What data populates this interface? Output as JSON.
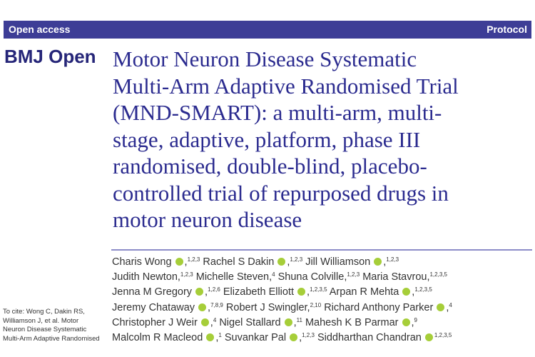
{
  "header": {
    "left": "Open access",
    "right": "Protocol"
  },
  "brand": "BMJ Open",
  "title_lines": [
    "Motor Neuron Disease Systematic",
    "Multi-Arm Adaptive Randomised Trial",
    "(MND-SMART): a multi-arm, multi-",
    "stage, adaptive, platform, phase III",
    "randomised, double-blind, placebo-",
    "controlled trial of repurposed drugs in",
    "motor neuron disease"
  ],
  "authors": [
    [
      {
        "n": "Charis Wong",
        "o": true,
        "s": "1,2,3"
      },
      {
        "n": "Rachel S Dakin",
        "o": true,
        "s": "1,2,3"
      },
      {
        "n": "Jill Williamson",
        "o": true,
        "s": "1,2,3"
      }
    ],
    [
      {
        "n": "Judith Newton,",
        "o": false,
        "s": "1,2,3"
      },
      {
        "n": "Michelle Steven,",
        "o": false,
        "s": "4"
      },
      {
        "n": "Shuna Colville,",
        "o": false,
        "s": "1,2,3"
      },
      {
        "n": "Maria Stavrou,",
        "o": false,
        "s": "1,2,3,5"
      }
    ],
    [
      {
        "n": "Jenna M Gregory",
        "o": true,
        "s": "1,2,6"
      },
      {
        "n": "Elizabeth Elliott",
        "o": true,
        "s": "1,2,3,5"
      },
      {
        "n": "Arpan R Mehta",
        "o": true,
        "s": "1,2,3,5"
      }
    ],
    [
      {
        "n": "Jeremy Chataway",
        "o": true,
        "s": "7,8,9"
      },
      {
        "n": "Robert J Swingler,",
        "o": false,
        "s": "2,10"
      },
      {
        "n": "Richard Anthony Parker",
        "o": true,
        "s": "4"
      }
    ],
    [
      {
        "n": "Christopher J Weir",
        "o": true,
        "s": "4"
      },
      {
        "n": "Nigel Stallard",
        "o": true,
        "s": "11"
      },
      {
        "n": "Mahesh K B Parmar",
        "o": true,
        "s": "9"
      }
    ],
    [
      {
        "n": "Malcolm R Macleod",
        "o": true,
        "s": "1"
      },
      {
        "n": "Suvankar Pal",
        "o": true,
        "s": "1,2,3"
      },
      {
        "n": "Siddharthan Chandran",
        "o": true,
        "s": "1,2,3,5",
        "last": true
      }
    ]
  ],
  "cite_lines": [
    "To cite: Wong C, Dakin RS,",
    "Williamson J, et al. Motor",
    "Neuron Disease Systematic",
    "Multi-Arm Adaptive Randomised"
  ],
  "colors": {
    "bar": "#3d3d96",
    "title": "#2b2b8f",
    "orcid": "#a6ce39"
  }
}
